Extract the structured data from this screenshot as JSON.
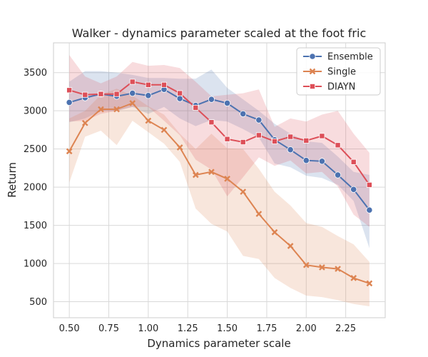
{
  "chart_data": {
    "type": "line",
    "title": "Walker - dynamics parameter scaled at the foot fric",
    "xlabel": "Dynamics parameter scale",
    "ylabel": "Return",
    "xlim": [
      0.4,
      2.5
    ],
    "ylim": [
      290,
      3890
    ],
    "xticks": [
      "0.50",
      "0.75",
      "1.00",
      "1.25",
      "1.50",
      "1.75",
      "2.00",
      "2.25"
    ],
    "xtick_values": [
      0.5,
      0.75,
      1.0,
      1.25,
      1.5,
      1.75,
      2.0,
      2.25
    ],
    "yticks": [
      "500",
      "1000",
      "1500",
      "2000",
      "2500",
      "3000",
      "3500"
    ],
    "ytick_values": [
      500,
      1000,
      1500,
      2000,
      2500,
      3000,
      3500
    ],
    "grid": true,
    "legend_position": "top-right",
    "x": [
      0.5,
      0.6,
      0.7,
      0.8,
      0.9,
      1.0,
      1.1,
      1.2,
      1.3,
      1.4,
      1.5,
      1.6,
      1.7,
      1.8,
      1.9,
      2.0,
      2.1,
      2.2,
      2.3,
      2.4
    ],
    "series": [
      {
        "name": "Ensemble",
        "color": "#4c72b0",
        "marker": "circle",
        "values": [
          3110,
          3170,
          3220,
          3190,
          3230,
          3200,
          3280,
          3160,
          3070,
          3150,
          3100,
          2960,
          2880,
          2620,
          2490,
          2350,
          2340,
          2160,
          1970,
          1700
        ],
        "lower": [
          2850,
          2900,
          3000,
          3000,
          3050,
          2960,
          3050,
          2900,
          2800,
          2880,
          2860,
          2760,
          2650,
          2310,
          2260,
          2150,
          2120,
          2030,
          1820,
          1200
        ],
        "upper": [
          3380,
          3520,
          3520,
          3500,
          3470,
          3430,
          3430,
          3420,
          3420,
          3540,
          3300,
          3150,
          3000,
          2830,
          2700,
          2600,
          2580,
          2400,
          2200,
          2160
        ]
      },
      {
        "name": "Single",
        "color": "#dd8452",
        "marker": "x",
        "values": [
          2470,
          2840,
          3020,
          3020,
          3100,
          2870,
          2750,
          2520,
          2160,
          2200,
          2110,
          1940,
          1650,
          1410,
          1230,
          980,
          950,
          930,
          810,
          740
        ],
        "lower": [
          2060,
          2660,
          2740,
          2550,
          2870,
          2720,
          2570,
          2330,
          1720,
          1520,
          1420,
          1100,
          1060,
          810,
          680,
          580,
          560,
          520,
          470,
          440
        ],
        "upper": [
          2900,
          3000,
          3210,
          3290,
          3200,
          3060,
          2950,
          2700,
          2500,
          2700,
          2510,
          2500,
          2240,
          1940,
          1760,
          1530,
          1480,
          1360,
          1250,
          1020
        ]
      },
      {
        "name": "DIAYN",
        "color": "#dd4f58",
        "marker": "square",
        "values": [
          3270,
          3210,
          3220,
          3220,
          3380,
          3340,
          3340,
          3230,
          3040,
          2850,
          2630,
          2590,
          2680,
          2600,
          2660,
          2610,
          2670,
          2550,
          2330,
          2030
        ],
        "lower": [
          2860,
          2870,
          2960,
          3000,
          3050,
          3050,
          2870,
          2680,
          2360,
          2230,
          1880,
          2130,
          2390,
          2280,
          2350,
          2180,
          2200,
          2010,
          1640,
          1480
        ],
        "upper": [
          3730,
          3450,
          3360,
          3450,
          3640,
          3590,
          3600,
          3560,
          3380,
          3190,
          3210,
          3230,
          3280,
          2790,
          2900,
          2860,
          2950,
          3000,
          2700,
          2450
        ]
      }
    ]
  }
}
